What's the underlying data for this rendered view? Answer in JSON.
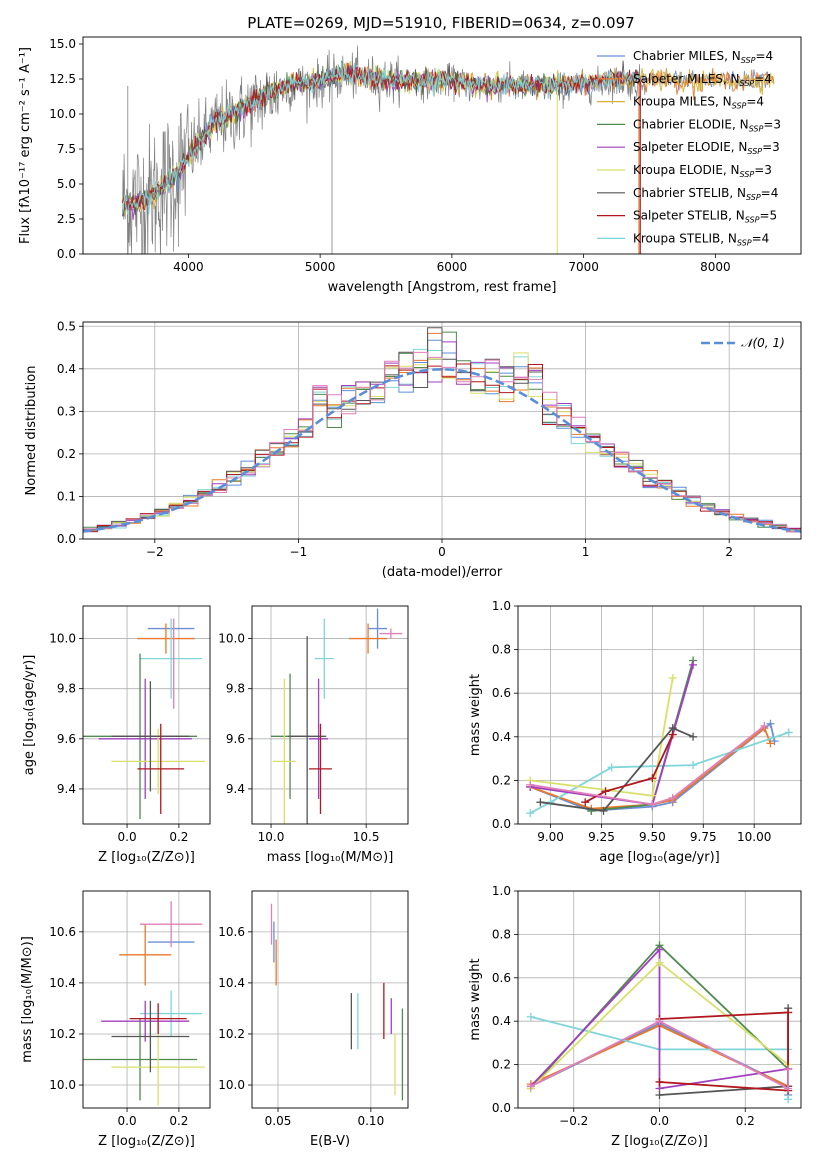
{
  "title": "PLATE=0269, MJD=51910, FIBERID=0634, z=0.097",
  "chart_data": [
    {
      "id": "spectrum",
      "type": "line",
      "xlabel": "wavelength [Angstrom, rest frame]",
      "ylabel": "Flux [fλ10⁻¹⁷ erg cm⁻² s⁻¹ A⁻¹]",
      "xlim": [
        3200,
        8650
      ],
      "ylim": [
        0,
        15.5
      ],
      "xticks": [
        4000,
        5000,
        6000,
        7000,
        8000
      ],
      "yticks": [
        0.0,
        2.5,
        5.0,
        7.5,
        10.0,
        12.5,
        15.0
      ],
      "grid": false,
      "legend_position": "right",
      "legend": [
        {
          "label": "Chabrier MILES, N",
          "sub": "SSP",
          "tail": "=4",
          "color": "#6a8fd6"
        },
        {
          "label": "Salpeter MILES, N",
          "sub": "SSP",
          "tail": "=4",
          "color": "#e8782a"
        },
        {
          "label": "Kroupa MILES, N",
          "sub": "SSP",
          "tail": "=4",
          "color": "#d6b135"
        },
        {
          "label": "Chabrier ELODIE, N",
          "sub": "SSP",
          "tail": "=3",
          "color": "#4f8a4f"
        },
        {
          "label": "Salpeter ELODIE, N",
          "sub": "SSP",
          "tail": "=3",
          "color": "#a23fbf"
        },
        {
          "label": "Kroupa ELODIE, N",
          "sub": "SSP",
          "tail": "=3",
          "color": "#d8e06a"
        },
        {
          "label": "Chabrier STELIB, N",
          "sub": "SSP",
          "tail": "=4",
          "color": "#555555"
        },
        {
          "label": "Salpeter STELIB, N",
          "sub": "SSP",
          "tail": "=5",
          "color": "#b0171f"
        },
        {
          "label": "Kroupa STELIB, N",
          "sub": "SSP",
          "tail": "=4",
          "color": "#7fd6d8"
        }
      ],
      "data_color": "#808080",
      "continuum_points": [
        [
          3500,
          3.5
        ],
        [
          3700,
          4.0
        ],
        [
          3900,
          5.5
        ],
        [
          4000,
          7.0
        ],
        [
          4200,
          9.2
        ],
        [
          4400,
          10.2
        ],
        [
          4600,
          11.3
        ],
        [
          4800,
          12.0
        ],
        [
          5000,
          12.2
        ],
        [
          5200,
          12.8
        ],
        [
          5400,
          12.5
        ],
        [
          5600,
          12.3
        ],
        [
          5800,
          12.2
        ],
        [
          6000,
          12.3
        ],
        [
          6200,
          11.9
        ],
        [
          6500,
          12.0
        ],
        [
          6800,
          11.8
        ],
        [
          7000,
          11.9
        ],
        [
          7200,
          12.3
        ],
        [
          7400,
          12.2
        ],
        [
          7500,
          12.4
        ]
      ],
      "model_continuum_points": [
        [
          3500,
          3.4
        ],
        [
          3700,
          3.9
        ],
        [
          3900,
          5.6
        ],
        [
          4000,
          7.0
        ],
        [
          4200,
          9.3
        ],
        [
          4400,
          10.4
        ],
        [
          4600,
          11.4
        ],
        [
          4800,
          12.2
        ],
        [
          5000,
          12.4
        ],
        [
          5200,
          12.9
        ],
        [
          5400,
          12.6
        ],
        [
          5600,
          12.4
        ],
        [
          5800,
          12.4
        ],
        [
          6000,
          12.5
        ],
        [
          6200,
          12.0
        ],
        [
          6500,
          12.1
        ],
        [
          6800,
          12.1
        ],
        [
          7000,
          12.2
        ],
        [
          7200,
          12.5
        ],
        [
          7400,
          12.6
        ],
        [
          7800,
          12.3
        ],
        [
          8100,
          12.4
        ],
        [
          8400,
          12.4
        ]
      ]
    },
    {
      "id": "residuals",
      "type": "histogram",
      "xlabel": "(data-model)/error",
      "ylabel": "Normed distribution",
      "xlim": [
        -2.5,
        2.5
      ],
      "ylim": [
        0,
        0.51
      ],
      "xticks": [
        -2,
        -1,
        0,
        1,
        2
      ],
      "yticks": [
        0.0,
        0.1,
        0.2,
        0.3,
        0.4,
        0.5
      ],
      "grid": true,
      "legend_position": "top-right",
      "legend": [
        {
          "label": "𝒩(0, 1)",
          "color": "#5b8ed8",
          "dash": true
        }
      ],
      "bin_width": 0.1,
      "bins_start": -2.5,
      "series_colors": [
        "#5b8ed8",
        "#e8782a",
        "#7fd6d8",
        "#4f8a4f",
        "#a23fbf",
        "#d8e06a",
        "#555555",
        "#b0171f",
        "#e07fba"
      ]
    },
    {
      "id": "age_vs_Z",
      "type": "errorbar",
      "xlabel": "Z [log₁₀(Z/Z⊙)]",
      "ylabel": "age  [log₁₀(age/yr)]",
      "xlim": [
        -0.17,
        0.32
      ],
      "ylim": [
        9.26,
        10.13
      ],
      "xticks": [
        0.0,
        0.2
      ],
      "yticks": [
        9.4,
        9.6,
        9.8,
        10.0
      ],
      "grid": true,
      "points": [
        {
          "x": 0.17,
          "y": 10.04,
          "xerr": 0.09,
          "yerr": 0.0,
          "color": "#6a8fd6"
        },
        {
          "x": 0.15,
          "y": 10.0,
          "xerr": 0.11,
          "yerr": 0.06,
          "color": "#e8782a"
        },
        {
          "x": 0.17,
          "y": 9.92,
          "xerr": 0.12,
          "yerr": 0.16,
          "color": "#7fd6d8"
        },
        {
          "x": 0.05,
          "y": 9.61,
          "xerr": 0.22,
          "yerr": 0.33,
          "color": "#4f8a4f"
        },
        {
          "x": 0.07,
          "y": 9.6,
          "xerr": 0.18,
          "yerr": 0.24,
          "color": "#a23fbf"
        },
        {
          "x": 0.12,
          "y": 9.51,
          "xerr": 0.18,
          "yerr": 0.13,
          "color": "#d8e06a"
        },
        {
          "x": 0.09,
          "y": 9.61,
          "xerr": 0.15,
          "yerr": 0.22,
          "color": "#555555"
        },
        {
          "x": 0.13,
          "y": 9.48,
          "xerr": 0.09,
          "yerr": 0.18,
          "color": "#b0171f"
        },
        {
          "x": 0.18,
          "y": 9.9,
          "xerr": 0.0,
          "yerr": 0.18,
          "color": "#e07fba"
        }
      ]
    },
    {
      "id": "age_vs_mass",
      "type": "errorbar",
      "xlabel": "mass [log₁₀(M/M⊙)]",
      "ylabel": "",
      "xlim": [
        9.9,
        10.72
      ],
      "ylim": [
        9.26,
        10.13
      ],
      "xticks": [
        10.0,
        10.5
      ],
      "yticks": [
        9.4,
        9.6,
        9.8,
        10.0
      ],
      "grid": true,
      "points": [
        {
          "x": 10.56,
          "y": 10.04,
          "xerr": 0.05,
          "yerr": 0.08,
          "color": "#6a8fd6"
        },
        {
          "x": 10.51,
          "y": 10.0,
          "xerr": 0.1,
          "yerr": 0.06,
          "color": "#e8782a"
        },
        {
          "x": 10.28,
          "y": 9.92,
          "xerr": 0.05,
          "yerr": 0.16,
          "color": "#7fd6d8"
        },
        {
          "x": 10.1,
          "y": 9.61,
          "xerr": 0.1,
          "yerr": 0.25,
          "color": "#4f8a4f"
        },
        {
          "x": 10.25,
          "y": 9.6,
          "xerr": 0.05,
          "yerr": 0.24,
          "color": "#a23fbf"
        },
        {
          "x": 10.07,
          "y": 9.51,
          "xerr": 0.06,
          "yerr": 0.33,
          "color": "#d8e06a"
        },
        {
          "x": 10.19,
          "y": 9.61,
          "xerr": 0.1,
          "yerr": 0.4,
          "color": "#555555"
        },
        {
          "x": 10.26,
          "y": 9.48,
          "xerr": 0.06,
          "yerr": 0.18,
          "color": "#b0171f"
        },
        {
          "x": 10.63,
          "y": 10.02,
          "xerr": 0.06,
          "yerr": 0.02,
          "color": "#e07fba"
        }
      ]
    },
    {
      "id": "mass_weight_vs_age",
      "type": "line",
      "xlabel": "age  [log₁₀(age/yr)]",
      "ylabel": "mass weight",
      "xlim": [
        8.84,
        10.23
      ],
      "ylim": [
        0,
        1
      ],
      "xticks": [
        9.0,
        9.25,
        9.5,
        9.75,
        10.0
      ],
      "yticks": [
        0.0,
        0.2,
        0.4,
        0.6,
        0.8,
        1.0
      ],
      "grid": true,
      "series": [
        {
          "color": "#6a8fd6",
          "x": [
            8.9,
            9.2,
            9.5,
            9.6,
            10.08,
            10.1
          ],
          "y": [
            0.17,
            0.06,
            0.08,
            0.1,
            0.46,
            0.38
          ]
        },
        {
          "color": "#e8782a",
          "x": [
            8.9,
            9.2,
            9.5,
            9.6,
            10.05,
            10.08
          ],
          "y": [
            0.17,
            0.07,
            0.09,
            0.11,
            0.44,
            0.37
          ]
        },
        {
          "color": "#7fd6d8",
          "x": [
            8.9,
            9.0,
            9.3,
            9.7,
            10.17
          ],
          "y": [
            0.05,
            0.1,
            0.26,
            0.27,
            0.42
          ]
        },
        {
          "color": "#4f8a4f",
          "x": [
            9.2,
            9.5,
            9.7
          ],
          "y": [
            0.06,
            0.09,
            0.75
          ]
        },
        {
          "color": "#a23fbf",
          "x": [
            8.9,
            9.5,
            9.7
          ],
          "y": [
            0.17,
            0.09,
            0.73
          ]
        },
        {
          "color": "#d8e06a",
          "x": [
            8.9,
            9.5,
            9.6
          ],
          "y": [
            0.2,
            0.13,
            0.67
          ]
        },
        {
          "color": "#555555",
          "x": [
            8.95,
            9.26,
            9.6,
            9.7
          ],
          "y": [
            0.1,
            0.06,
            0.44,
            0.4
          ]
        },
        {
          "color": "#b0171f",
          "x": [
            9.17,
            9.27,
            9.5,
            9.6
          ],
          "y": [
            0.1,
            0.15,
            0.21,
            0.41
          ]
        },
        {
          "color": "#e07fba",
          "x": [
            8.9,
            9.5,
            9.6,
            10.05
          ],
          "y": [
            0.18,
            0.09,
            0.12,
            0.45
          ]
        }
      ]
    },
    {
      "id": "mass_vs_Z",
      "type": "errorbar",
      "xlabel": "Z [log₁₀(Z/Z⊙)]",
      "ylabel": "mass [log₁₀(M/M⊙)]",
      "xlim": [
        -0.17,
        0.32
      ],
      "ylim": [
        9.91,
        10.76
      ],
      "xticks": [
        0.0,
        0.2
      ],
      "yticks": [
        10.0,
        10.2,
        10.4,
        10.6
      ],
      "grid": true,
      "points": [
        {
          "x": 0.17,
          "y": 10.56,
          "xerr": 0.09,
          "yerr": 0.0,
          "color": "#6a8fd6"
        },
        {
          "x": 0.07,
          "y": 10.51,
          "xerr": 0.1,
          "yerr": 0.12,
          "color": "#e8782a"
        },
        {
          "x": 0.17,
          "y": 10.28,
          "xerr": 0.12,
          "yerr": 0.09,
          "color": "#7fd6d8"
        },
        {
          "x": 0.05,
          "y": 10.1,
          "xerr": 0.22,
          "yerr": 0.16,
          "color": "#4f8a4f"
        },
        {
          "x": 0.07,
          "y": 10.25,
          "xerr": 0.17,
          "yerr": 0.08,
          "color": "#a23fbf"
        },
        {
          "x": 0.12,
          "y": 10.07,
          "xerr": 0.18,
          "yerr": 0.15,
          "color": "#d8e06a"
        },
        {
          "x": 0.09,
          "y": 10.19,
          "xerr": 0.15,
          "yerr": 0.14,
          "color": "#555555"
        },
        {
          "x": 0.12,
          "y": 10.26,
          "xerr": 0.11,
          "yerr": 0.06,
          "color": "#b0171f"
        },
        {
          "x": 0.17,
          "y": 10.63,
          "xerr": 0.12,
          "yerr": 0.09,
          "color": "#e07fba"
        }
      ]
    },
    {
      "id": "mass_vs_ebv",
      "type": "errorbar",
      "xlabel": "E(B-V)",
      "ylabel": "",
      "xlim": [
        0.036,
        0.12
      ],
      "ylim": [
        9.91,
        10.76
      ],
      "xticks": [
        0.05,
        0.1
      ],
      "yticks": [
        10.0,
        10.2,
        10.4,
        10.6
      ],
      "grid": true,
      "points": [
        {
          "x": 0.0478,
          "y": 10.56,
          "xerr": 0.0,
          "yerr": 0.08,
          "color": "#6a8fd6"
        },
        {
          "x": 0.049,
          "y": 10.48,
          "xerr": 0.0,
          "yerr": 0.09,
          "color": "#e8782a"
        },
        {
          "x": 0.093,
          "y": 10.25,
          "xerr": 0.0,
          "yerr": 0.11,
          "color": "#7fd6d8"
        },
        {
          "x": 0.117,
          "y": 10.12,
          "xerr": 0.0,
          "yerr": 0.18,
          "color": "#4f8a4f"
        },
        {
          "x": 0.111,
          "y": 10.27,
          "xerr": 0.0,
          "yerr": 0.07,
          "color": "#a23fbf"
        },
        {
          "x": 0.113,
          "y": 10.08,
          "xerr": 0.0,
          "yerr": 0.12,
          "color": "#d8e06a"
        },
        {
          "x": 0.0895,
          "y": 10.25,
          "xerr": 0.0,
          "yerr": 0.11,
          "color": "#555555"
        },
        {
          "x": 0.107,
          "y": 10.29,
          "xerr": 0.0,
          "yerr": 0.11,
          "color": "#b0171f"
        },
        {
          "x": 0.0465,
          "y": 10.63,
          "xerr": 0.0,
          "yerr": 0.08,
          "color": "#e07fba"
        }
      ]
    },
    {
      "id": "mass_weight_vs_Z",
      "type": "line",
      "xlabel": "Z [log₁₀(Z/Z⊙)]",
      "ylabel": "mass weight",
      "xlim": [
        -0.33,
        0.33
      ],
      "ylim": [
        0,
        1
      ],
      "xticks": [
        -0.2,
        0.0,
        0.2
      ],
      "yticks": [
        0.0,
        0.2,
        0.4,
        0.6,
        0.8,
        1.0
      ],
      "grid": true,
      "series": [
        {
          "color": "#6a8fd6",
          "x": [
            -0.3,
            0.0,
            0.3,
            0.3
          ],
          "y": [
            0.1,
            0.39,
            0.1,
            0.06
          ]
        },
        {
          "color": "#e8782a",
          "x": [
            -0.3,
            0.0,
            0.3,
            0.3
          ],
          "y": [
            0.11,
            0.38,
            0.1,
            0.44
          ]
        },
        {
          "color": "#7fd6d8",
          "x": [
            -0.3,
            0.0,
            0.3,
            0.3
          ],
          "y": [
            0.42,
            0.27,
            0.27,
            0.04
          ]
        },
        {
          "color": "#4f8a4f",
          "x": [
            -0.3,
            0.0,
            0.3
          ],
          "y": [
            0.09,
            0.75,
            0.18
          ]
        },
        {
          "color": "#a23fbf",
          "x": [
            -0.3,
            0.0,
            0.0,
            0.3
          ],
          "y": [
            0.1,
            0.73,
            0.09,
            0.18
          ]
        },
        {
          "color": "#d8e06a",
          "x": [
            -0.3,
            0.0,
            0.3
          ],
          "y": [
            0.09,
            0.67,
            0.2
          ]
        },
        {
          "color": "#555555",
          "x": [
            0.0,
            0.3,
            0.3
          ],
          "y": [
            0.06,
            0.1,
            0.46
          ]
        },
        {
          "color": "#b0171f",
          "x": [
            0.0,
            0.3,
            0.3,
            0.0
          ],
          "y": [
            0.41,
            0.44,
            0.08,
            0.12
          ]
        },
        {
          "color": "#e07fba",
          "x": [
            -0.3,
            0.0,
            0.3,
            0.3
          ],
          "y": [
            0.1,
            0.4,
            0.09,
            0.18
          ]
        }
      ]
    }
  ]
}
